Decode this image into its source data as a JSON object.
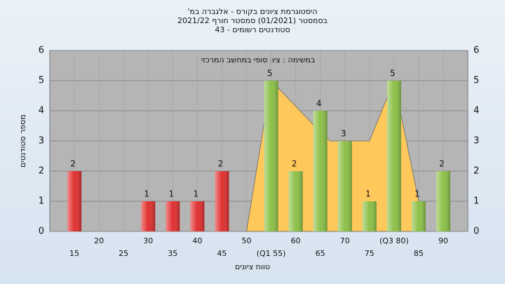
{
  "chart_data": {
    "type": "bar",
    "title": "היסטוגרמת ציונים בקורס - אלגברה במ'",
    "subtitle": "בסמסטר (01/2021) סמסטר חורף 2021/22",
    "subtitle2": "סטודנטים רשומים - 43",
    "annotation": "במשימה : ציון סופי במחשב המרכזי",
    "xlabel": "טווח ציונים",
    "ylabel": "מספר סטודנטים",
    "x": [
      15,
      20,
      25,
      30,
      35,
      40,
      45,
      50,
      55,
      60,
      65,
      70,
      75,
      80,
      85,
      90
    ],
    "values": [
      2,
      0,
      0,
      1,
      1,
      1,
      2,
      0,
      5,
      2,
      4,
      3,
      1,
      5,
      1,
      2
    ],
    "colors": [
      "#e03030",
      "#e03030",
      "#e03030",
      "#e03030",
      "#e03030",
      "#e03030",
      "#e03030",
      "#e03030",
      "#8cc048",
      "#8cc048",
      "#8cc048",
      "#8cc048",
      "#8cc048",
      "#8cc048",
      "#8cc048",
      "#8cc048"
    ],
    "area": {
      "color": "#ffc85a",
      "x": [
        50,
        55,
        65,
        67,
        75,
        80,
        85
      ],
      "values": [
        0,
        5,
        3.3,
        3,
        3,
        5,
        1
      ]
    },
    "xlim": [
      10,
      95
    ],
    "xticks": [
      15,
      20,
      25,
      30,
      35,
      40,
      45,
      50,
      {
        "value": 55,
        "label": "(Q1 55)"
      },
      60,
      65,
      70,
      75,
      {
        "value": 80,
        "label": "(Q3 80)"
      },
      85,
      90
    ],
    "ylim": [
      0,
      6
    ],
    "yticks": [
      0,
      1,
      2,
      3,
      4,
      5,
      6
    ],
    "grid": true
  }
}
